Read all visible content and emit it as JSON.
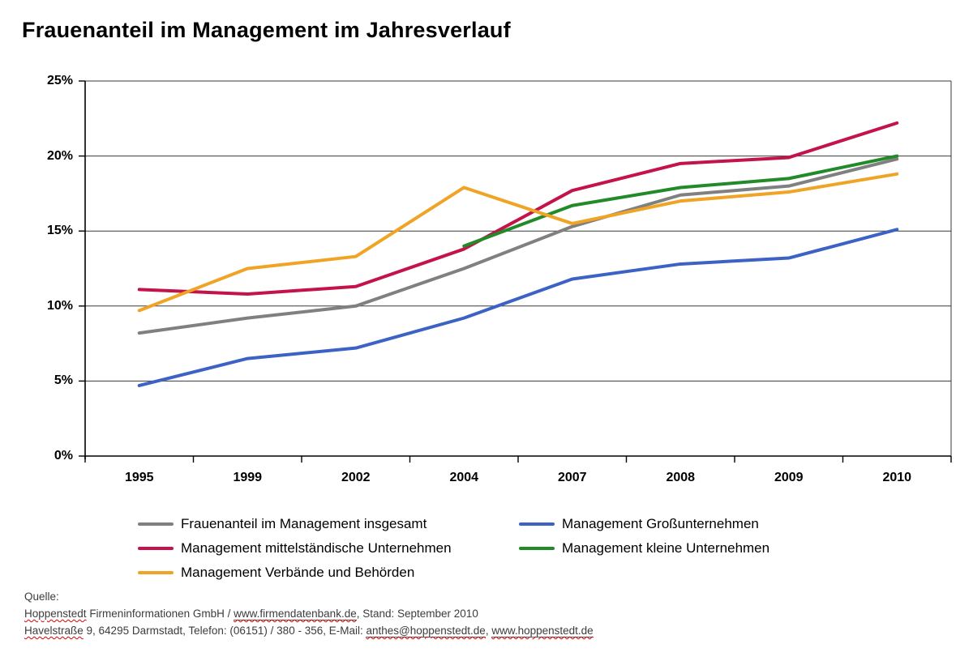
{
  "title": "Frauenanteil im Management im Jahresverlauf",
  "chart_data": {
    "type": "line",
    "categories": [
      "1995",
      "1999",
      "2002",
      "2004",
      "2007",
      "2008",
      "2009",
      "2010"
    ],
    "series": [
      {
        "name": "Frauenanteil im Management insgesamt",
        "color": "#808080",
        "values": [
          8.2,
          9.2,
          10.0,
          12.5,
          15.3,
          17.4,
          18.0,
          19.8
        ]
      },
      {
        "name": "Management Großunternehmen",
        "color": "#3B62C4",
        "values": [
          4.7,
          6.5,
          7.2,
          9.2,
          11.8,
          12.8,
          13.2,
          15.1
        ]
      },
      {
        "name": "Management mittelständische Unternehmen",
        "color": "#C4124B",
        "values": [
          11.1,
          10.8,
          11.3,
          13.8,
          17.7,
          19.5,
          19.9,
          22.2
        ]
      },
      {
        "name": "Management kleine Unternehmen",
        "color": "#228A29",
        "values": [
          null,
          null,
          null,
          14.0,
          16.7,
          17.9,
          18.5,
          20.0
        ]
      },
      {
        "name": "Management Verbände und Behörden",
        "color": "#F0A426",
        "values": [
          9.7,
          12.5,
          13.3,
          17.9,
          15.5,
          17.0,
          17.6,
          18.8
        ]
      }
    ],
    "ylim": [
      0,
      25
    ],
    "ytick_step": 5,
    "ytick_labels": [
      "0%",
      "5%",
      "10%",
      "15%",
      "20%",
      "25%"
    ],
    "grid": true,
    "legend_position": "bottom"
  },
  "footer": {
    "source_label": "Quelle:",
    "lines": [
      {
        "segments": [
          {
            "text": "Hoppenstedt",
            "wavy": true
          },
          {
            "text": " Firmeninformationen GmbH / "
          },
          {
            "text": "www.firmendatenbank.de",
            "wavy": true,
            "link": true
          },
          {
            "text": ", Stand: September 2010"
          }
        ]
      },
      {
        "segments": [
          {
            "text": "Havelstraße",
            "wavy": true
          },
          {
            "text": " 9, 64295 Darmstadt, Telefon: (06151) / 380 - 356, E-Mail: "
          },
          {
            "text": "anthes@hoppenstedt.de",
            "wavy": true,
            "link": true
          },
          {
            "text": ", "
          },
          {
            "text": "www.hoppenstedt.de",
            "wavy": true,
            "link": true
          }
        ]
      }
    ]
  }
}
